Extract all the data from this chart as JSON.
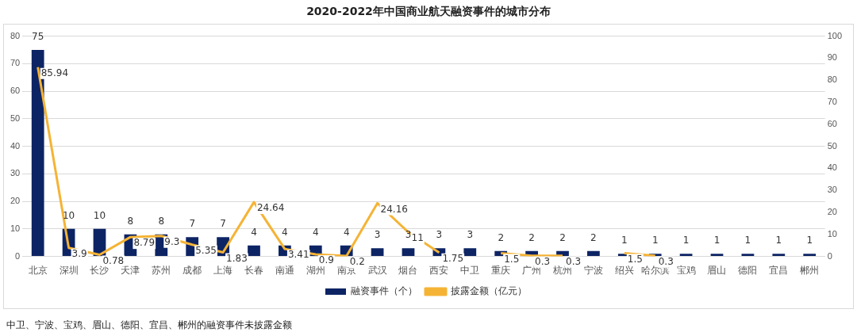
{
  "chart_data": {
    "type": "bar",
    "title": "2020-2022年中国商业航天融资事件的城市分布",
    "categories": [
      "北京",
      "深圳",
      "长沙",
      "天津",
      "苏州",
      "成都",
      "上海",
      "长春",
      "南通",
      "湖州",
      "南京",
      "武汉",
      "烟台",
      "西安",
      "中卫",
      "重庆",
      "广州",
      "杭州",
      "宁波",
      "绍兴",
      "哈尔滨",
      "宝鸡",
      "眉山",
      "德阳",
      "宜昌",
      "郴州"
    ],
    "series": [
      {
        "name": "融资事件（个）",
        "color": "#0d2464",
        "values": [
          75,
          10,
          10,
          8,
          8,
          7,
          7,
          4,
          4,
          4,
          4,
          3,
          3,
          3,
          3,
          2,
          2,
          2,
          2,
          1,
          1,
          1,
          1,
          1,
          1,
          1
        ]
      },
      {
        "name": "披露金额（亿元）",
        "type": "line",
        "axis": "y2",
        "color": "#f5b335",
        "values": [
          85.94,
          3.9,
          0.78,
          8.79,
          9.3,
          5.35,
          1.83,
          24.64,
          3.41,
          0.9,
          0.2,
          24.16,
          11,
          1.75,
          null,
          1.5,
          0.3,
          0.3,
          null,
          1.5,
          0.3,
          null,
          null,
          null,
          null,
          null
        ]
      }
    ],
    "ylim": [
      0,
      80
    ],
    "yticks": [
      0,
      10,
      20,
      30,
      40,
      50,
      60,
      70,
      80
    ],
    "y2lim": [
      0,
      100
    ],
    "y2ticks": [
      0,
      10,
      20,
      30,
      40,
      50,
      60,
      70,
      80,
      90,
      100
    ],
    "grid": "y",
    "legend": "bottom",
    "marker": "none",
    "line_style": "solid",
    "data_labels": true,
    "annotations": [
      "中卫、宁波、宝鸡、眉山、德阳、宜昌、郴州的融资事件未披露金额"
    ]
  }
}
